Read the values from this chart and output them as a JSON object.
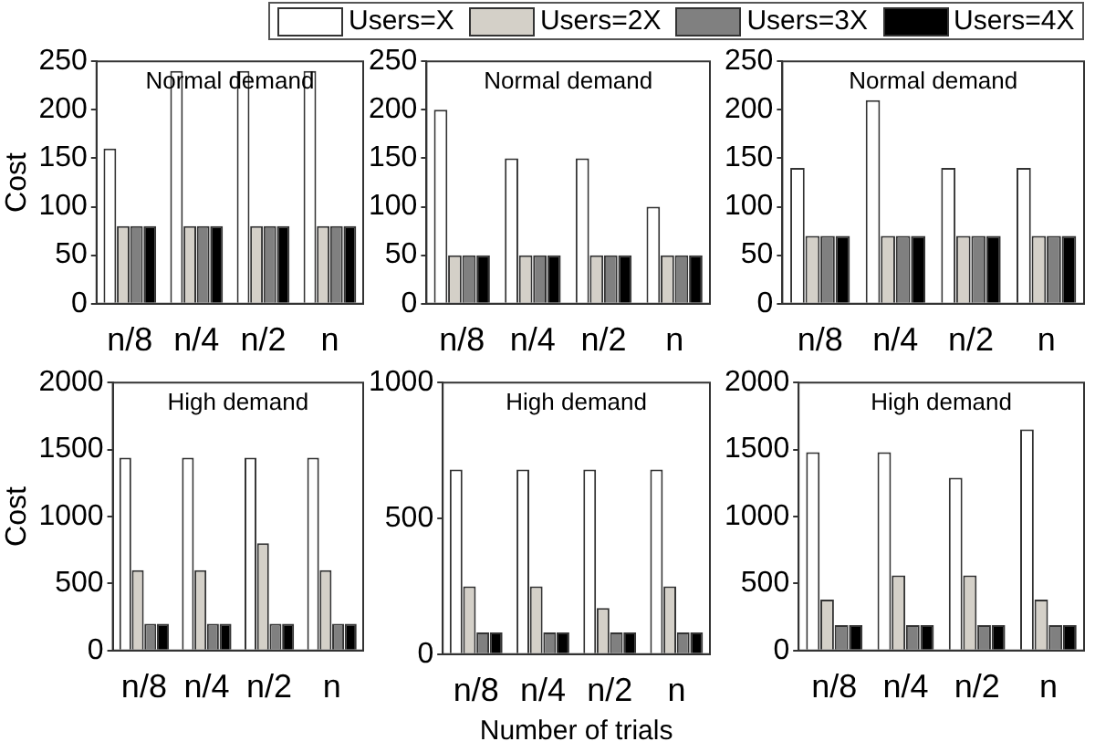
{
  "chart_data": [
    {
      "type": "bar",
      "title": "Normal demand",
      "ylabel": "Cost",
      "categories": [
        "n/8",
        "n/4",
        "n/2",
        "n"
      ],
      "ylim": [
        0,
        250
      ],
      "yticks": [
        0,
        50,
        100,
        150,
        200,
        250
      ],
      "legend": "top",
      "series": [
        {
          "name": "Users=X",
          "color": "#ffffff",
          "values": [
            160,
            240,
            240,
            240
          ]
        },
        {
          "name": "Users=2X",
          "color": "#d4d0c8",
          "values": [
            80,
            80,
            80,
            80
          ]
        },
        {
          "name": "Users=3X",
          "color": "#808080",
          "values": [
            80,
            80,
            80,
            80
          ]
        },
        {
          "name": "Users=4X",
          "color": "#000000",
          "values": [
            80,
            80,
            80,
            80
          ]
        }
      ]
    },
    {
      "type": "bar",
      "title": "Normal demand",
      "categories": [
        "n/8",
        "n/4",
        "n/2",
        "n"
      ],
      "ylim": [
        0,
        250
      ],
      "yticks": [
        0,
        50,
        100,
        150,
        200,
        250
      ],
      "series": [
        {
          "color": "#ffffff",
          "values": [
            200,
            150,
            150,
            100
          ]
        },
        {
          "color": "#d4d0c8",
          "values": [
            50,
            50,
            50,
            50
          ]
        },
        {
          "color": "#808080",
          "values": [
            50,
            50,
            50,
            50
          ]
        },
        {
          "color": "#000000",
          "values": [
            50,
            50,
            50,
            50
          ]
        }
      ]
    },
    {
      "type": "bar",
      "title": "Normal demand",
      "categories": [
        "n/8",
        "n/4",
        "n/2",
        "n"
      ],
      "ylim": [
        0,
        250
      ],
      "yticks": [
        0,
        50,
        100,
        150,
        200,
        250
      ],
      "series": [
        {
          "color": "#ffffff",
          "values": [
            140,
            210,
            140,
            140
          ]
        },
        {
          "color": "#d4d0c8",
          "values": [
            70,
            70,
            70,
            70
          ]
        },
        {
          "color": "#808080",
          "values": [
            70,
            70,
            70,
            70
          ]
        },
        {
          "color": "#000000",
          "values": [
            70,
            70,
            70,
            70
          ]
        }
      ]
    },
    {
      "type": "bar",
      "title": "High demand",
      "ylabel": "Cost",
      "categories": [
        "n/8",
        "n/4",
        "n/2",
        "n"
      ],
      "ylim": [
        0,
        2000
      ],
      "yticks": [
        0,
        500,
        1000,
        1500,
        2000
      ],
      "series": [
        {
          "color": "#ffffff",
          "values": [
            1440,
            1440,
            1440,
            1440
          ]
        },
        {
          "color": "#d4d0c8",
          "values": [
            600,
            600,
            800,
            600
          ]
        },
        {
          "color": "#808080",
          "values": [
            200,
            200,
            200,
            200
          ]
        },
        {
          "color": "#000000",
          "values": [
            200,
            200,
            200,
            200
          ]
        }
      ]
    },
    {
      "type": "bar",
      "title": "High demand",
      "xlabel": "Number of trials",
      "categories": [
        "n/8",
        "n/4",
        "n/2",
        "n"
      ],
      "ylim": [
        0,
        1000
      ],
      "yticks": [
        0,
        500,
        1000
      ],
      "series": [
        {
          "color": "#ffffff",
          "values": [
            680,
            680,
            680,
            680
          ]
        },
        {
          "color": "#d4d0c8",
          "values": [
            250,
            250,
            170,
            250
          ]
        },
        {
          "color": "#808080",
          "values": [
            80,
            80,
            80,
            80
          ]
        },
        {
          "color": "#000000",
          "values": [
            80,
            80,
            80,
            80
          ]
        }
      ]
    },
    {
      "type": "bar",
      "title": "High demand",
      "categories": [
        "n/8",
        "n/4",
        "n/2",
        "n"
      ],
      "ylim": [
        0,
        2000
      ],
      "yticks": [
        0,
        500,
        1000,
        1500,
        2000
      ],
      "series": [
        {
          "color": "#ffffff",
          "values": [
            1480,
            1480,
            1290,
            1650
          ]
        },
        {
          "color": "#d4d0c8",
          "values": [
            380,
            560,
            560,
            380
          ]
        },
        {
          "color": "#808080",
          "values": [
            190,
            190,
            190,
            190
          ]
        },
        {
          "color": "#000000",
          "values": [
            190,
            190,
            190,
            190
          ]
        }
      ]
    }
  ]
}
